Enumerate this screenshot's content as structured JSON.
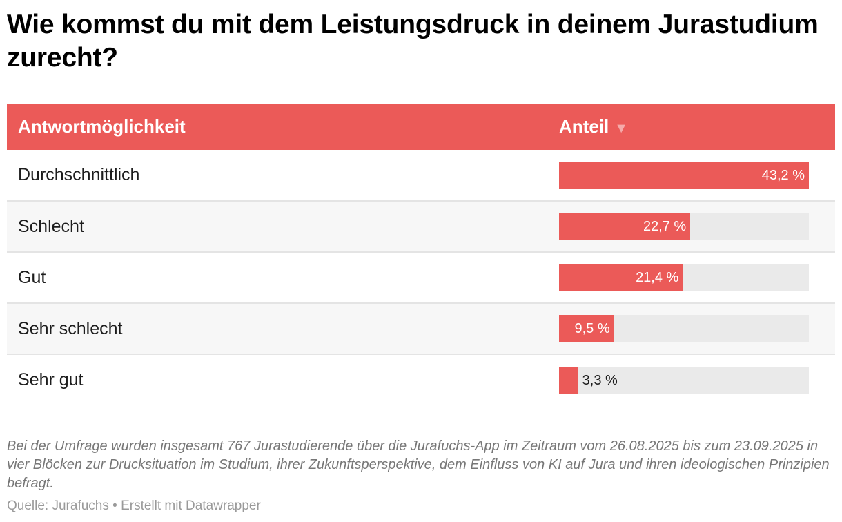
{
  "title": "Wie kommst du mit dem Leistungsdruck in deinem Jurastudium zurecht?",
  "colors": {
    "accent": "#eb5a58",
    "track": "#eaeaea"
  },
  "chart_data": {
    "type": "table",
    "columns": [
      "Antwortmöglichkeit",
      "Anteil"
    ],
    "sort_icon": "triangle-down-icon",
    "rows": [
      {
        "label": "Durchschnittlich",
        "value": 43.2,
        "text": "43,2 %"
      },
      {
        "label": "Schlecht",
        "value": 22.7,
        "text": "22,7 %"
      },
      {
        "label": "Gut",
        "value": 21.4,
        "text": "21,4 %"
      },
      {
        "label": "Sehr schlecht",
        "value": 9.5,
        "text": "9,5 %"
      },
      {
        "label": "Sehr gut",
        "value": 3.3,
        "text": "3,3 %"
      }
    ]
  },
  "notes": "Bei der Umfrage wurden insgesamt 767 Jurastudierende über die Jurafuchs-App im Zeitraum vom 26.08.2025 bis zum 23.09.2025 in vier Blöcken zur Drucksituation im Studium, ihrer Zukunftsperspektive, dem Einfluss von KI auf Jura und ihren ideologischen Prinzipien befragt.",
  "source": "Quelle: Jurafuchs • Erstellt mit Datawrapper"
}
